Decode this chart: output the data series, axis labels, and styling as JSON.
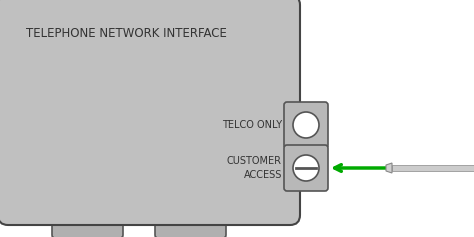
{
  "bg_color": "#ffffff",
  "box_color": "#c0c0c0",
  "box_edge_color": "#444444",
  "title_text": "TELEPHONE NETWORK INTERFACE",
  "title_color": "#333333",
  "title_fontsize": 8.5,
  "telco_label": "TELCO ONLY",
  "customer_label": "CUSTOMER\nACCESS",
  "label_fontsize": 7,
  "label_color": "#333333",
  "port_box_color": "#b8b8b8",
  "port_box_edge": "#555555",
  "screw_hole_color": "#ffffff",
  "screw_line_color": "#555555",
  "arrow_color": "#00aa00",
  "feet_color": "#b0b0b0",
  "feet_edge": "#555555",
  "handle_yellow": "#e8c000",
  "handle_dark": "#222222",
  "handle_stripe": "#555533",
  "shaft_color": "#888888",
  "shaft_light": "#cccccc"
}
